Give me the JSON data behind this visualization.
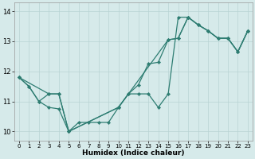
{
  "xlabel": "Humidex (Indice chaleur)",
  "bg_color": "#d6eaea",
  "line_color": "#2e7d72",
  "grid_color": "#b8d4d4",
  "xlim": [
    -0.5,
    23.5
  ],
  "ylim": [
    9.7,
    14.3
  ],
  "xticks": [
    0,
    1,
    2,
    3,
    4,
    5,
    6,
    7,
    8,
    9,
    10,
    11,
    12,
    13,
    14,
    15,
    16,
    17,
    18,
    19,
    20,
    21,
    22,
    23
  ],
  "yticks": [
    10,
    11,
    12,
    13,
    14
  ],
  "line1_x": [
    0,
    1,
    2,
    3,
    4,
    5,
    6,
    7,
    8,
    9,
    10,
    11,
    12,
    13,
    14,
    15,
    16,
    17,
    18,
    19,
    20,
    21,
    22,
    23
  ],
  "line1_y": [
    11.8,
    11.5,
    11.0,
    10.8,
    10.75,
    10.0,
    10.3,
    10.3,
    10.3,
    10.3,
    10.8,
    11.25,
    11.25,
    11.25,
    10.8,
    11.25,
    13.8,
    13.8,
    13.55,
    13.35,
    13.1,
    13.1,
    12.65,
    13.35
  ],
  "line2_x": [
    0,
    1,
    2,
    3,
    4,
    5,
    10,
    11,
    12,
    13,
    14,
    15,
    16,
    17,
    18,
    19,
    20,
    21,
    22,
    23
  ],
  "line2_y": [
    11.8,
    11.5,
    11.0,
    11.25,
    11.25,
    10.0,
    10.8,
    11.25,
    11.55,
    12.25,
    12.3,
    13.05,
    13.1,
    13.8,
    13.55,
    13.35,
    13.1,
    13.1,
    12.65,
    13.35
  ],
  "line3_x": [
    0,
    3,
    4,
    5,
    10,
    15,
    16,
    17,
    18,
    19,
    20,
    21,
    22,
    23
  ],
  "line3_y": [
    11.8,
    11.25,
    11.25,
    10.0,
    10.8,
    13.05,
    13.1,
    13.8,
    13.55,
    13.35,
    13.1,
    13.1,
    12.65,
    13.35
  ]
}
